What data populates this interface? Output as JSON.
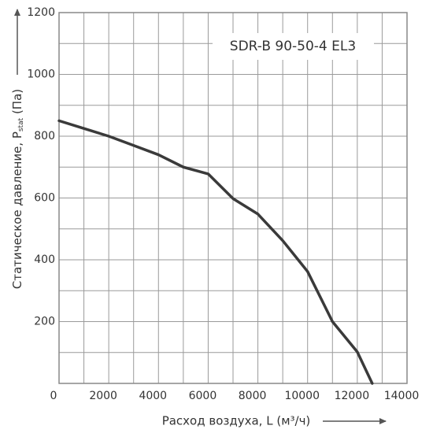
{
  "chart_data": {
    "type": "line",
    "annotation": "SDR-B 90-50-4 EL3",
    "xlabel": "Расход воздуха, L (м³/ч)",
    "ylabel": "Статическое давление, P",
    "ylabel_sub": "stat",
    "ylabel_unit": " (Па)",
    "x": [
      0,
      1000,
      2000,
      3000,
      4000,
      5000,
      6000,
      7000,
      8000,
      9000,
      10000,
      11000,
      12000,
      12600
    ],
    "series": [
      {
        "color": "#3a3a3a",
        "values": [
          850,
          825,
          800,
          770,
          740,
          700,
          678,
          598,
          548,
          462,
          362,
          200,
          102,
          0
        ]
      }
    ],
    "xlim": [
      0,
      14000
    ],
    "ylim": [
      0,
      1200
    ],
    "xticks": [
      0,
      2000,
      4000,
      6000,
      8000,
      10000,
      12000,
      14000
    ],
    "yticks": [
      200,
      400,
      600,
      800,
      1000,
      1200
    ],
    "xminor": [
      1000,
      3000,
      5000,
      7000,
      9000,
      11000,
      13000
    ],
    "yminor": [
      100,
      300,
      500,
      700,
      900,
      1100
    ],
    "grid": true
  }
}
